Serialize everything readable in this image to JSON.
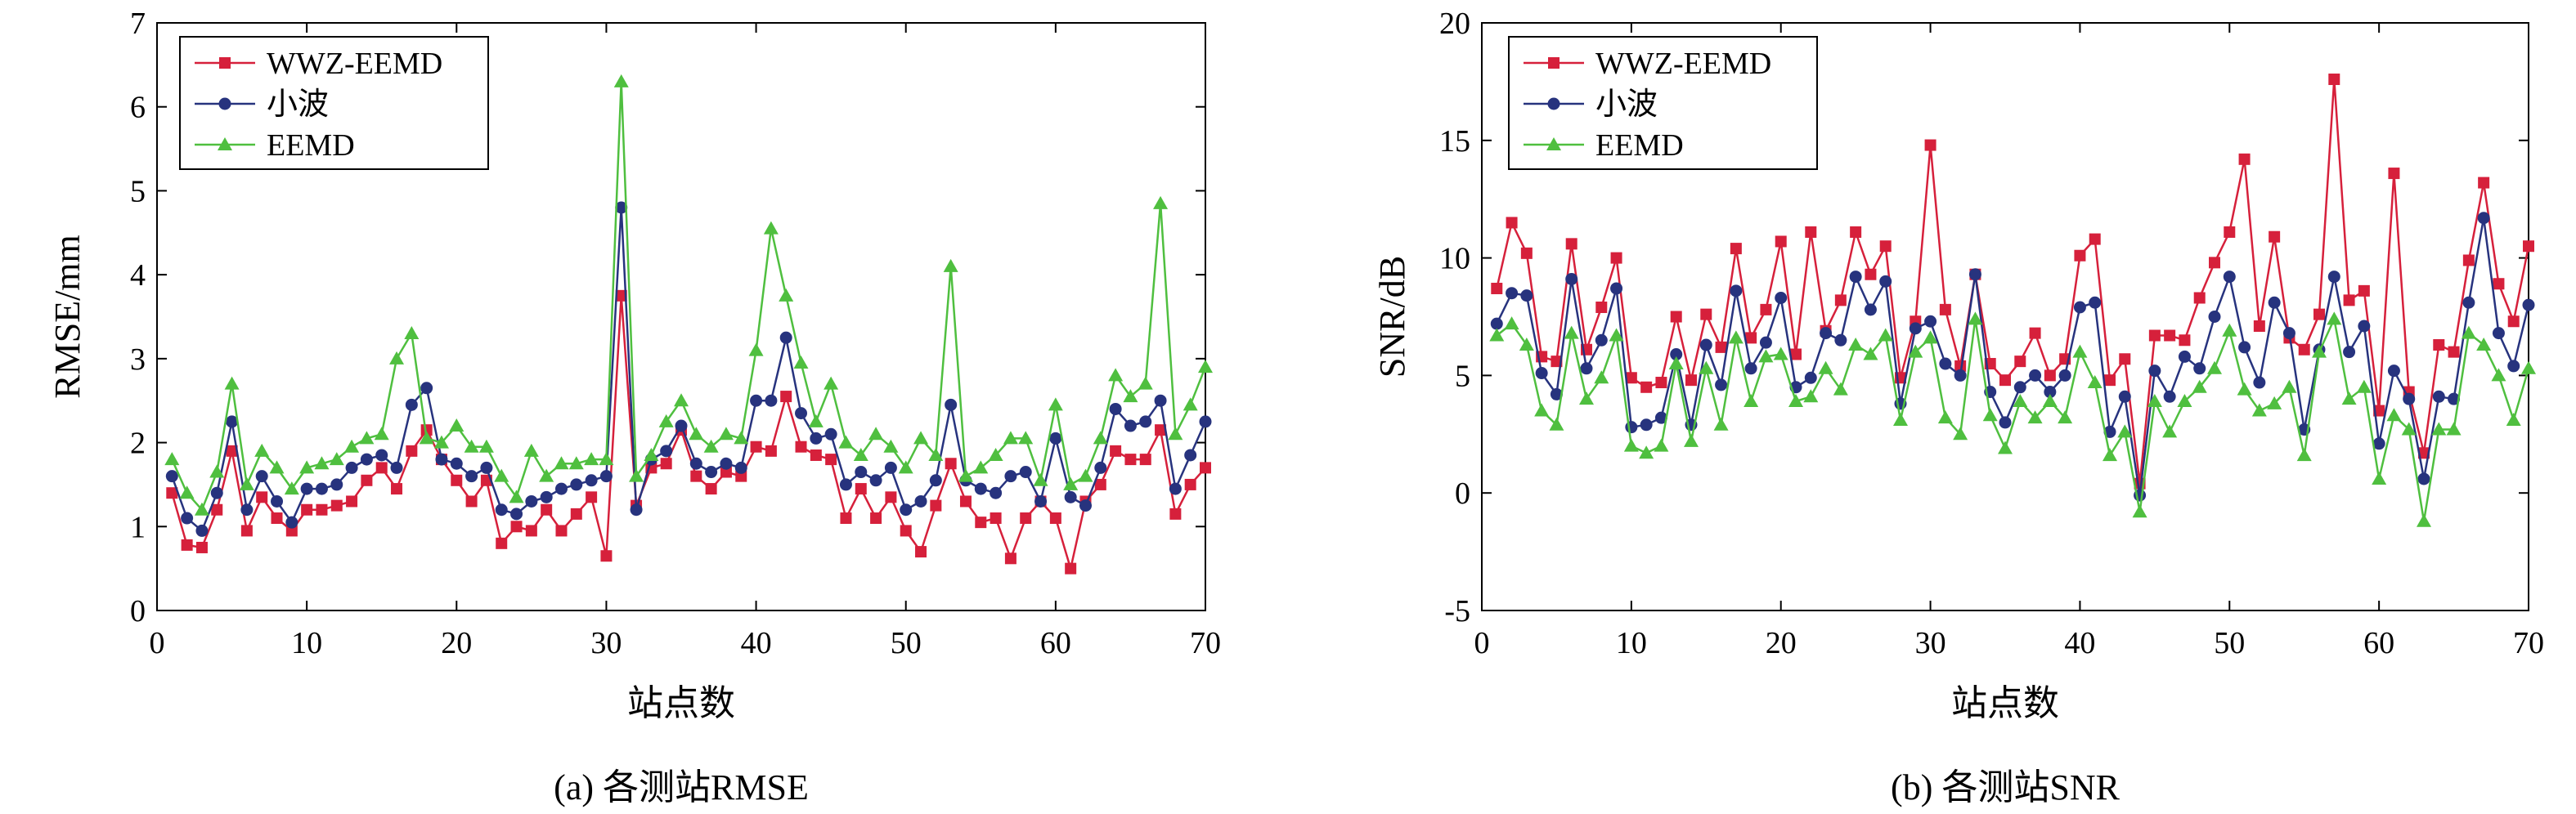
{
  "chart_data": [
    {
      "id": "a",
      "type": "line",
      "caption": "(a) 各测站RMSE",
      "xlabel": "站点数",
      "ylabel": "RMSE/mm",
      "xlim": [
        0,
        70
      ],
      "ylim": [
        0,
        7
      ],
      "xticks": [
        0,
        10,
        20,
        30,
        40,
        50,
        60,
        70
      ],
      "yticks": [
        0,
        1,
        2,
        3,
        4,
        5,
        6,
        7
      ],
      "legend_position": "top-left",
      "x": [
        1,
        2,
        3,
        4,
        5,
        6,
        7,
        8,
        9,
        10,
        11,
        12,
        13,
        14,
        15,
        16,
        17,
        18,
        19,
        20,
        21,
        22,
        23,
        24,
        25,
        26,
        27,
        28,
        29,
        30,
        31,
        32,
        33,
        34,
        35,
        36,
        37,
        38,
        39,
        40,
        41,
        42,
        43,
        44,
        45,
        46,
        47,
        48,
        49,
        50,
        51,
        52,
        53,
        54,
        55,
        56,
        57,
        58,
        59,
        60,
        61,
        62,
        63,
        64,
        65,
        66,
        67,
        68,
        69,
        70
      ],
      "series": [
        {
          "name": "WWZ-EEMD",
          "color": "#d6203b",
          "marker": "square",
          "values": [
            1.4,
            0.78,
            0.75,
            1.2,
            1.9,
            0.95,
            1.35,
            1.1,
            0.95,
            1.2,
            1.2,
            1.25,
            1.3,
            1.55,
            1.7,
            1.45,
            1.9,
            2.15,
            1.8,
            1.55,
            1.3,
            1.55,
            0.8,
            1.0,
            0.95,
            1.2,
            0.95,
            1.15,
            1.35,
            0.65,
            3.75,
            1.25,
            1.7,
            1.75,
            2.15,
            1.6,
            1.45,
            1.65,
            1.6,
            1.95,
            1.9,
            2.55,
            1.95,
            1.85,
            1.8,
            1.1,
            1.45,
            1.1,
            1.35,
            0.95,
            0.7,
            1.25,
            1.75,
            1.3,
            1.05,
            1.1,
            0.62,
            1.1,
            1.3,
            1.1,
            0.5,
            1.3,
            1.5,
            1.9,
            1.8,
            1.8,
            2.15,
            1.15,
            1.5,
            1.7
          ]
        },
        {
          "name": "小波",
          "color": "#27337e",
          "marker": "circle",
          "values": [
            1.6,
            1.1,
            0.95,
            1.4,
            2.25,
            1.2,
            1.6,
            1.3,
            1.05,
            1.45,
            1.45,
            1.5,
            1.7,
            1.8,
            1.85,
            1.7,
            2.45,
            2.65,
            1.8,
            1.75,
            1.6,
            1.7,
            1.2,
            1.15,
            1.3,
            1.35,
            1.45,
            1.5,
            1.55,
            1.6,
            4.8,
            1.2,
            1.8,
            1.9,
            2.2,
            1.75,
            1.65,
            1.75,
            1.7,
            2.5,
            2.5,
            3.25,
            2.35,
            2.05,
            2.1,
            1.5,
            1.65,
            1.55,
            1.7,
            1.2,
            1.3,
            1.55,
            2.45,
            1.55,
            1.45,
            1.4,
            1.6,
            1.65,
            1.3,
            2.05,
            1.35,
            1.25,
            1.7,
            2.4,
            2.2,
            2.25,
            2.5,
            1.45,
            1.85,
            2.25
          ]
        },
        {
          "name": "EEMD",
          "color": "#4fbf3f",
          "marker": "triangle",
          "values": [
            1.8,
            1.4,
            1.2,
            1.65,
            2.7,
            1.5,
            1.9,
            1.7,
            1.45,
            1.7,
            1.75,
            1.8,
            1.95,
            2.05,
            2.1,
            3.0,
            3.3,
            2.05,
            2.0,
            2.2,
            1.95,
            1.95,
            1.6,
            1.35,
            1.9,
            1.6,
            1.75,
            1.75,
            1.8,
            1.8,
            6.3,
            1.6,
            1.85,
            2.25,
            2.5,
            2.1,
            1.95,
            2.1,
            2.05,
            3.1,
            4.55,
            3.75,
            2.95,
            2.25,
            2.7,
            2.0,
            1.85,
            2.1,
            1.95,
            1.7,
            2.05,
            1.85,
            4.1,
            1.6,
            1.7,
            1.85,
            2.05,
            2.05,
            1.55,
            2.45,
            1.5,
            1.6,
            2.05,
            2.8,
            2.55,
            2.7,
            4.85,
            2.1,
            2.45,
            2.9
          ]
        }
      ]
    },
    {
      "id": "b",
      "type": "line",
      "caption": "(b) 各测站SNR",
      "xlabel": "站点数",
      "ylabel": "SNR/dB",
      "xlim": [
        0,
        70
      ],
      "ylim": [
        -5,
        20
      ],
      "xticks": [
        0,
        10,
        20,
        30,
        40,
        50,
        60,
        70
      ],
      "yticks": [
        -5,
        0,
        5,
        10,
        15,
        20
      ],
      "legend_position": "top-left",
      "x": [
        1,
        2,
        3,
        4,
        5,
        6,
        7,
        8,
        9,
        10,
        11,
        12,
        13,
        14,
        15,
        16,
        17,
        18,
        19,
        20,
        21,
        22,
        23,
        24,
        25,
        26,
        27,
        28,
        29,
        30,
        31,
        32,
        33,
        34,
        35,
        36,
        37,
        38,
        39,
        40,
        41,
        42,
        43,
        44,
        45,
        46,
        47,
        48,
        49,
        50,
        51,
        52,
        53,
        54,
        55,
        56,
        57,
        58,
        59,
        60,
        61,
        62,
        63,
        64,
        65,
        66,
        67,
        68,
        69,
        70
      ],
      "series": [
        {
          "name": "WWZ-EEMD",
          "color": "#d6203b",
          "marker": "square",
          "values": [
            8.7,
            11.5,
            10.2,
            5.8,
            5.6,
            10.6,
            6.1,
            7.9,
            10.0,
            4.9,
            4.5,
            4.7,
            7.5,
            4.8,
            7.6,
            6.2,
            10.4,
            6.6,
            7.8,
            10.7,
            5.9,
            11.1,
            6.9,
            8.2,
            11.1,
            9.3,
            10.5,
            4.9,
            7.3,
            14.8,
            7.8,
            5.4,
            9.3,
            5.5,
            4.8,
            5.6,
            6.8,
            5.0,
            5.7,
            10.1,
            10.8,
            4.8,
            5.7,
            0.4,
            6.7,
            6.7,
            6.5,
            8.3,
            9.8,
            11.1,
            14.2,
            7.1,
            10.9,
            6.6,
            6.1,
            7.6,
            17.6,
            8.2,
            8.6,
            3.5,
            13.6,
            4.3,
            1.7,
            6.3,
            6.0,
            9.9,
            13.2,
            8.9,
            7.3,
            10.5
          ]
        },
        {
          "name": "小波",
          "color": "#27337e",
          "marker": "circle",
          "values": [
            7.2,
            8.5,
            8.4,
            5.1,
            4.2,
            9.1,
            5.3,
            6.5,
            8.7,
            2.8,
            2.9,
            3.2,
            5.9,
            2.9,
            6.3,
            4.6,
            8.6,
            5.3,
            6.4,
            8.3,
            4.5,
            4.9,
            6.8,
            6.5,
            9.2,
            7.8,
            9.0,
            3.8,
            7.0,
            7.3,
            5.5,
            5.0,
            9.3,
            4.3,
            3.0,
            4.5,
            5.0,
            4.3,
            5.0,
            7.9,
            8.1,
            2.6,
            4.1,
            -0.1,
            5.2,
            4.1,
            5.8,
            5.3,
            7.5,
            9.2,
            6.2,
            4.7,
            8.1,
            6.8,
            2.7,
            6.1,
            9.2,
            6.0,
            7.1,
            2.1,
            5.2,
            4.0,
            0.6,
            4.1,
            4.0,
            8.1,
            11.7,
            6.8,
            5.4,
            8.0
          ]
        },
        {
          "name": "EEMD",
          "color": "#4fbf3f",
          "marker": "triangle",
          "values": [
            6.7,
            7.2,
            6.3,
            3.5,
            2.9,
            6.8,
            4.0,
            4.9,
            6.7,
            2.0,
            1.7,
            2.0,
            5.5,
            2.2,
            5.3,
            2.9,
            6.6,
            3.9,
            5.8,
            5.9,
            3.9,
            4.1,
            5.3,
            4.4,
            6.3,
            5.9,
            6.7,
            3.1,
            6.0,
            6.6,
            3.2,
            2.5,
            7.4,
            3.3,
            1.9,
            3.9,
            3.2,
            3.9,
            3.2,
            6.0,
            4.7,
            1.6,
            2.6,
            -0.8,
            3.9,
            2.6,
            3.9,
            4.5,
            5.3,
            6.9,
            4.4,
            3.5,
            3.8,
            4.5,
            1.6,
            6.0,
            7.4,
            4.0,
            4.5,
            0.6,
            3.3,
            2.7,
            -1.2,
            2.7,
            2.7,
            6.8,
            6.3,
            5.0,
            3.1,
            5.3
          ]
        }
      ]
    }
  ]
}
